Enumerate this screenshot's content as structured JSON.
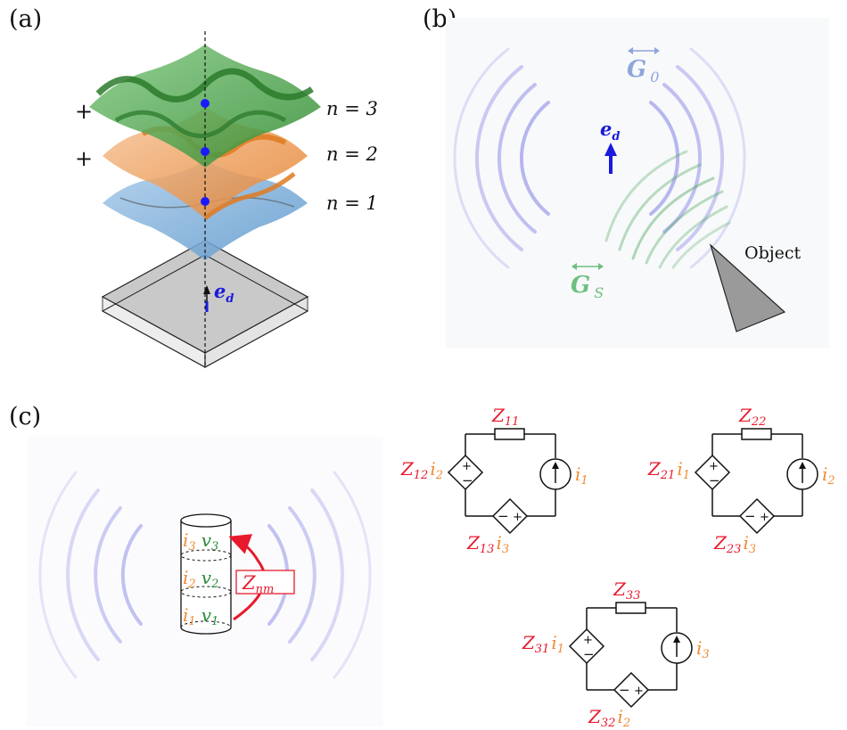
{
  "panels": {
    "a": "(a)",
    "b": "(b)",
    "c": "(c)"
  },
  "panel_a": {
    "bands": [
      {
        "label": "n = 3",
        "sign": "+",
        "color": "#3b9a3b"
      },
      {
        "label": "n = 2",
        "sign": "+",
        "color": "#ef8b32"
      },
      {
        "label": "n = 1",
        "sign": "",
        "color": "#6aa5d6"
      }
    ],
    "dipole": {
      "symbol": "e",
      "sub": "d",
      "color": "#1a1adc"
    }
  },
  "panel_b": {
    "g0": {
      "symbol": "G",
      "sub": "0",
      "color": "#8ea6dc"
    },
    "gs": {
      "symbol": "G",
      "sub": "S",
      "color": "#6fbf7f"
    },
    "dipole": {
      "symbol": "e",
      "sub": "d",
      "color": "#1a1adc"
    },
    "object_label": "Object"
  },
  "panel_c": {
    "currents": [
      {
        "i": "i",
        "isub": "3",
        "v": "v",
        "vsub": "3"
      },
      {
        "i": "i",
        "isub": "2",
        "v": "v",
        "vsub": "2"
      },
      {
        "i": "i",
        "isub": "1",
        "v": "v",
        "vsub": "1"
      }
    ],
    "znm": {
      "symbol": "Z",
      "sub": "nm"
    },
    "circuits": [
      {
        "top": "11",
        "left_z": "12",
        "left_i": "2",
        "bot_z": "13",
        "bot_i": "3",
        "src_i": "1"
      },
      {
        "top": "22",
        "left_z": "21",
        "left_i": "1",
        "bot_z": "23",
        "bot_i": "3",
        "src_i": "2"
      },
      {
        "top": "33",
        "left_z": "31",
        "left_i": "1",
        "bot_z": "32",
        "bot_i": "2",
        "src_i": "3"
      }
    ],
    "colors": {
      "impedance": "#e8192c",
      "current": "#ef8b32",
      "voltage": "#2a8a3a"
    }
  }
}
